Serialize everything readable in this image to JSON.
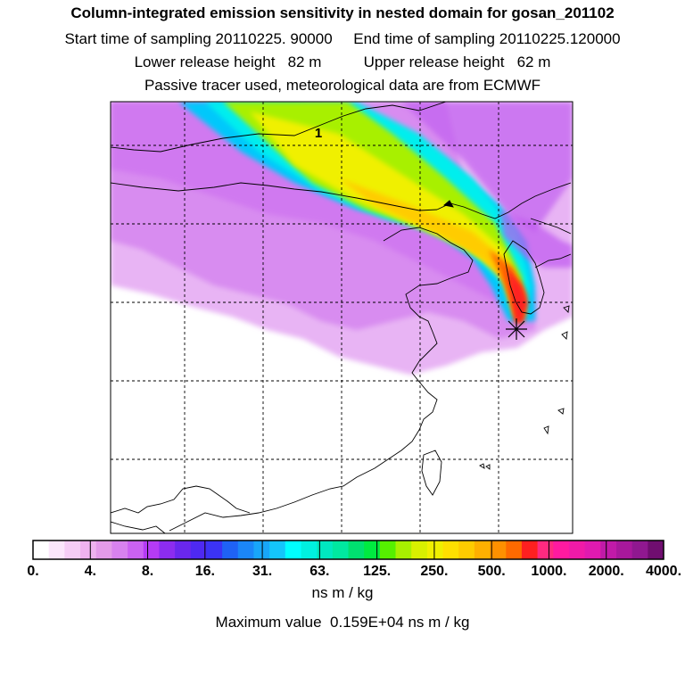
{
  "header": {
    "title": "Column-integrated emission sensitivity in nested domain for gosan_201102",
    "line2": "Start time of sampling 20110225. 90000     End time of sampling 20110225.120000",
    "line3": "Lower release height   82 m          Upper release height   62 m",
    "line4": "Passive tracer used, meteorological data are from ECMWF"
  },
  "map": {
    "plume_label": "1",
    "receptor_marker": "star-receptor",
    "grid": "dashed",
    "colors": {
      "land_background": "#ffffff",
      "outline": "#000000",
      "low_sensitivity": "#e2a8f8",
      "peak": "#ff2020"
    }
  },
  "colorbar": {
    "tick_labels": [
      "0.",
      "4.",
      "8.",
      "16.",
      "31.",
      "63.",
      "125.",
      "250.",
      "500.",
      "1000.",
      "2000.",
      "4000."
    ],
    "units": "ns m / kg",
    "colors": [
      "#ffffff",
      "#fbe6fb",
      "#f5cdf5",
      "#efb3ef",
      "#e49be9",
      "#d882ef",
      "#cb62f2",
      "#b53bf5",
      "#8c2cf0",
      "#6a27ee",
      "#4e29f2",
      "#3b33f5",
      "#1f62f5",
      "#1b86f7",
      "#18a6f8",
      "#14c6fb",
      "#00ffff",
      "#00f0e0",
      "#00e8c0",
      "#00e8a0",
      "#00e070",
      "#00ea40",
      "#56f000",
      "#a8f000",
      "#d8f000",
      "#f0f000",
      "#ffe000",
      "#ffcc00",
      "#ffb000",
      "#ff9000",
      "#ff6a00",
      "#ff2020",
      "#ff2a80",
      "#ff1aa0",
      "#f01aa8",
      "#e01ab0",
      "#c01aa8",
      "#a8189c",
      "#901890",
      "#700e70"
    ]
  },
  "footer": {
    "max_value": "Maximum value  0.159E+04 ns m / kg"
  },
  "chart_data": {
    "type": "heatmap",
    "title": "Column-integrated emission sensitivity in nested domain for gosan_201102",
    "colorbar_levels": [
      0,
      4,
      8,
      16,
      31,
      63,
      125,
      250,
      500,
      1000,
      2000,
      4000
    ],
    "colorbar_units": "ns m / kg",
    "maximum_value": 1590,
    "grid_lines": "dashed",
    "plume": {
      "description_label": "1",
      "max_level_band": "1000-2000"
    }
  }
}
